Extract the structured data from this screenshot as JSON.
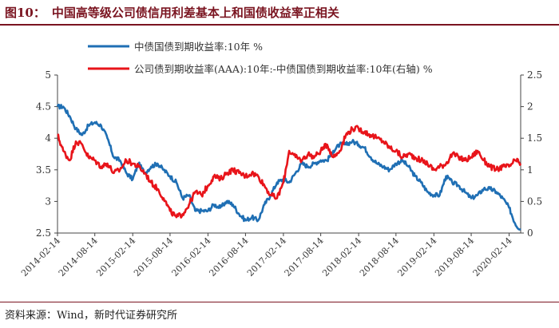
{
  "figure": {
    "number": "图10：",
    "title": "中国高等级公司债信用利差基本上和国债收益率正相关",
    "source": "资料来源：Wind，新时代证券研究所"
  },
  "colors": {
    "series_blue": "#1f6fb4",
    "series_red": "#e8141a",
    "title": "#7a1420"
  },
  "chart_data": {
    "type": "line",
    "legend_placement": "top",
    "grid": false,
    "x_ticks": [
      "2014-02-14",
      "2014-08-14",
      "2015-02-14",
      "2015-08-14",
      "2016-02-14",
      "2016-08-14",
      "2017-02-14",
      "2017-08-14",
      "2018-02-14",
      "2018-08-14",
      "2019-02-14",
      "2019-08-14",
      "2020-02-14"
    ],
    "x_range": [
      "2014-02-14",
      "2020-04-10"
    ],
    "y_left": {
      "ylim": [
        2.5,
        5
      ],
      "ticks": [
        "2.5",
        "3",
        "3.5",
        "4",
        "4.5",
        "5"
      ]
    },
    "y_right": {
      "ylim": [
        0,
        2.5
      ],
      "ticks": [
        "0",
        "0.5",
        "1",
        "1.5",
        "2",
        "2.5"
      ]
    },
    "series": [
      {
        "name": "中债国债到期收益率:10年 %",
        "axis": "left",
        "color": "#1f6fb4",
        "points": [
          [
            "2014-02-14",
            4.5
          ],
          [
            "2014-03-14",
            4.5
          ],
          [
            "2014-04-14",
            4.35
          ],
          [
            "2014-05-14",
            4.15
          ],
          [
            "2014-06-14",
            4.05
          ],
          [
            "2014-07-14",
            4.2
          ],
          [
            "2014-08-14",
            4.25
          ],
          [
            "2014-09-14",
            4.2
          ],
          [
            "2014-10-14",
            4.0
          ],
          [
            "2014-11-14",
            3.7
          ],
          [
            "2014-12-14",
            3.65
          ],
          [
            "2015-01-14",
            3.45
          ],
          [
            "2015-02-14",
            3.35
          ],
          [
            "2015-03-14",
            3.6
          ],
          [
            "2015-04-14",
            3.45
          ],
          [
            "2015-05-14",
            3.55
          ],
          [
            "2015-06-14",
            3.6
          ],
          [
            "2015-07-14",
            3.5
          ],
          [
            "2015-08-14",
            3.4
          ],
          [
            "2015-09-14",
            3.3
          ],
          [
            "2015-10-14",
            3.05
          ],
          [
            "2015-11-14",
            3.1
          ],
          [
            "2015-12-14",
            2.85
          ],
          [
            "2016-01-14",
            2.85
          ],
          [
            "2016-02-14",
            2.85
          ],
          [
            "2016-03-14",
            2.95
          ],
          [
            "2016-04-14",
            2.9
          ],
          [
            "2016-05-14",
            3.0
          ],
          [
            "2016-06-14",
            2.95
          ],
          [
            "2016-07-14",
            2.8
          ],
          [
            "2016-08-14",
            2.7
          ],
          [
            "2016-09-14",
            2.75
          ],
          [
            "2016-10-14",
            2.7
          ],
          [
            "2016-11-14",
            2.95
          ],
          [
            "2016-12-14",
            3.1
          ],
          [
            "2017-01-14",
            3.3
          ],
          [
            "2017-02-14",
            3.35
          ],
          [
            "2017-03-14",
            3.3
          ],
          [
            "2017-04-14",
            3.45
          ],
          [
            "2017-05-14",
            3.6
          ],
          [
            "2017-06-14",
            3.55
          ],
          [
            "2017-07-14",
            3.6
          ],
          [
            "2017-08-14",
            3.65
          ],
          [
            "2017-09-14",
            3.65
          ],
          [
            "2017-10-14",
            3.8
          ],
          [
            "2017-11-14",
            3.9
          ],
          [
            "2017-12-14",
            3.9
          ],
          [
            "2018-01-14",
            3.95
          ],
          [
            "2018-02-14",
            3.9
          ],
          [
            "2018-03-14",
            3.85
          ],
          [
            "2018-04-14",
            3.7
          ],
          [
            "2018-05-14",
            3.6
          ],
          [
            "2018-06-14",
            3.55
          ],
          [
            "2018-07-14",
            3.5
          ],
          [
            "2018-08-14",
            3.6
          ],
          [
            "2018-09-14",
            3.65
          ],
          [
            "2018-10-14",
            3.55
          ],
          [
            "2018-11-14",
            3.4
          ],
          [
            "2018-12-14",
            3.3
          ],
          [
            "2019-01-14",
            3.15
          ],
          [
            "2019-02-14",
            3.1
          ],
          [
            "2019-03-14",
            3.1
          ],
          [
            "2019-04-14",
            3.4
          ],
          [
            "2019-05-14",
            3.3
          ],
          [
            "2019-06-14",
            3.25
          ],
          [
            "2019-07-14",
            3.15
          ],
          [
            "2019-08-14",
            3.05
          ],
          [
            "2019-09-14",
            3.1
          ],
          [
            "2019-10-14",
            3.2
          ],
          [
            "2019-11-14",
            3.2
          ],
          [
            "2019-12-14",
            3.15
          ],
          [
            "2020-01-14",
            3.05
          ],
          [
            "2020-02-14",
            2.9
          ],
          [
            "2020-03-14",
            2.65
          ],
          [
            "2020-04-10",
            2.55
          ]
        ]
      },
      {
        "name": "公司债到期收益率(AAA):10年:-中债国债到期收益率:10年(右轴) %",
        "axis": "right",
        "color": "#e8141a",
        "points": [
          [
            "2014-02-14",
            1.55
          ],
          [
            "2014-03-14",
            1.3
          ],
          [
            "2014-04-14",
            1.15
          ],
          [
            "2014-05-14",
            1.45
          ],
          [
            "2014-06-14",
            1.4
          ],
          [
            "2014-07-14",
            1.2
          ],
          [
            "2014-08-14",
            1.15
          ],
          [
            "2014-09-14",
            1.05
          ],
          [
            "2014-10-14",
            1.1
          ],
          [
            "2014-11-14",
            0.95
          ],
          [
            "2014-12-14",
            1.0
          ],
          [
            "2015-01-14",
            1.15
          ],
          [
            "2015-02-14",
            1.1
          ],
          [
            "2015-03-14",
            1.05
          ],
          [
            "2015-04-14",
            0.95
          ],
          [
            "2015-05-14",
            0.8
          ],
          [
            "2015-06-14",
            0.7
          ],
          [
            "2015-07-14",
            0.55
          ],
          [
            "2015-08-14",
            0.35
          ],
          [
            "2015-09-14",
            0.25
          ],
          [
            "2015-10-14",
            0.3
          ],
          [
            "2015-11-14",
            0.45
          ],
          [
            "2015-12-14",
            0.65
          ],
          [
            "2016-01-14",
            0.6
          ],
          [
            "2016-02-14",
            0.75
          ],
          [
            "2016-03-14",
            0.9
          ],
          [
            "2016-04-14",
            0.85
          ],
          [
            "2016-05-14",
            0.95
          ],
          [
            "2016-06-14",
            1.0
          ],
          [
            "2016-07-14",
            0.95
          ],
          [
            "2016-08-14",
            0.9
          ],
          [
            "2016-09-14",
            0.95
          ],
          [
            "2016-10-14",
            0.9
          ],
          [
            "2016-11-14",
            0.75
          ],
          [
            "2016-12-14",
            0.6
          ],
          [
            "2017-01-14",
            0.55
          ],
          [
            "2017-02-14",
            0.8
          ],
          [
            "2017-03-14",
            1.3
          ],
          [
            "2017-04-14",
            1.2
          ],
          [
            "2017-05-14",
            1.15
          ],
          [
            "2017-06-14",
            1.25
          ],
          [
            "2017-07-14",
            1.2
          ],
          [
            "2017-08-14",
            1.3
          ],
          [
            "2017-09-14",
            1.4
          ],
          [
            "2017-10-14",
            1.2
          ],
          [
            "2017-11-14",
            1.3
          ],
          [
            "2017-12-14",
            1.55
          ],
          [
            "2018-01-14",
            1.65
          ],
          [
            "2018-02-14",
            1.65
          ],
          [
            "2018-03-14",
            1.6
          ],
          [
            "2018-04-14",
            1.55
          ],
          [
            "2018-05-14",
            1.5
          ],
          [
            "2018-06-14",
            1.45
          ],
          [
            "2018-07-14",
            1.35
          ],
          [
            "2018-08-14",
            1.3
          ],
          [
            "2018-09-14",
            1.2
          ],
          [
            "2018-10-14",
            1.25
          ],
          [
            "2018-11-14",
            1.2
          ],
          [
            "2018-12-14",
            1.15
          ],
          [
            "2019-01-14",
            1.1
          ],
          [
            "2019-02-14",
            1.0
          ],
          [
            "2019-03-14",
            1.05
          ],
          [
            "2019-04-14",
            1.1
          ],
          [
            "2019-05-14",
            1.25
          ],
          [
            "2019-06-14",
            1.2
          ],
          [
            "2019-07-14",
            1.15
          ],
          [
            "2019-08-14",
            1.2
          ],
          [
            "2019-09-14",
            1.3
          ],
          [
            "2019-10-14",
            1.15
          ],
          [
            "2019-11-14",
            1.05
          ],
          [
            "2019-12-14",
            1.0
          ],
          [
            "2020-01-14",
            1.05
          ],
          [
            "2020-02-14",
            1.05
          ],
          [
            "2020-03-14",
            1.15
          ],
          [
            "2020-04-10",
            1.1
          ]
        ]
      }
    ]
  }
}
